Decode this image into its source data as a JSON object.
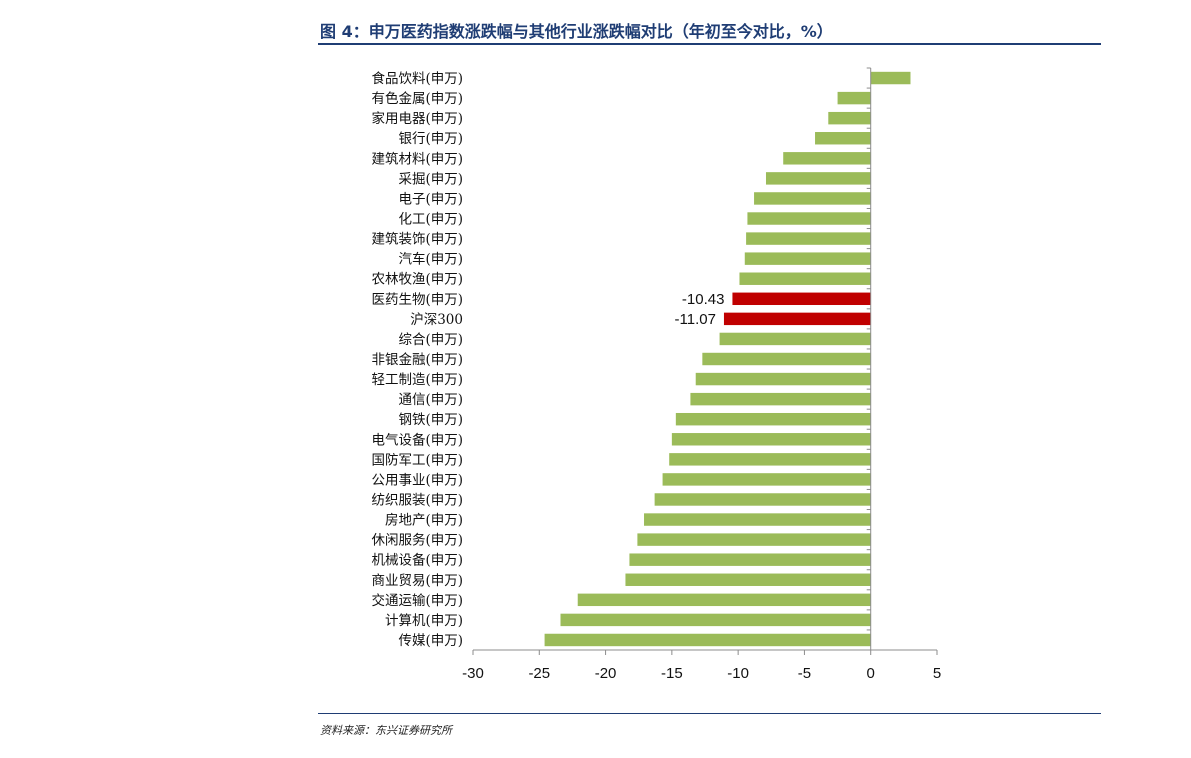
{
  "header": {
    "title": "图 4：申万医药指数涨跌幅与其他行业涨跌幅对比（年初至今对比，%）"
  },
  "footer": {
    "source": "资料来源：东兴证券研究所"
  },
  "colors": {
    "title": "#1f3d74",
    "bar_default": "#9bbb59",
    "bar_highlight": "#c00000",
    "axis": "#8c8c8c"
  },
  "chart_data": {
    "type": "bar",
    "orientation": "horizontal",
    "title": "申万医药指数涨跌幅与其他行业涨跌幅对比（年初至今对比，%）",
    "xlabel": "",
    "ylabel": "",
    "xlim": [
      -30,
      5
    ],
    "xticks": [
      -30,
      -25,
      -20,
      -15,
      -10,
      -5,
      0,
      5
    ],
    "grid": false,
    "categories": [
      "食品饮料(申万)",
      "有色金属(申万)",
      "家用电器(申万)",
      "银行(申万)",
      "建筑材料(申万)",
      "采掘(申万)",
      "电子(申万)",
      "化工(申万)",
      "建筑装饰(申万)",
      "汽车(申万)",
      "农林牧渔(申万)",
      "医药生物(申万)",
      "沪深300",
      "综合(申万)",
      "非银金融(申万)",
      "轻工制造(申万)",
      "通信(申万)",
      "钢铁(申万)",
      "电气设备(申万)",
      "国防军工(申万)",
      "公用事业(申万)",
      "纺织服装(申万)",
      "房地产(申万)",
      "休闲服务(申万)",
      "机械设备(申万)",
      "商业贸易(申万)",
      "交通运输(申万)",
      "计算机(申万)",
      "传媒(申万)"
    ],
    "values": [
      3.0,
      -2.5,
      -3.2,
      -4.2,
      -6.6,
      -7.9,
      -8.8,
      -9.3,
      -9.4,
      -9.5,
      -9.9,
      -10.43,
      -11.07,
      -11.4,
      -12.7,
      -13.2,
      -13.6,
      -14.7,
      -15.0,
      -15.2,
      -15.7,
      -16.3,
      -17.1,
      -17.6,
      -18.2,
      -18.5,
      -22.1,
      -23.4,
      -24.6
    ],
    "highlighted": [
      "医药生物(申万)",
      "沪深300"
    ],
    "data_labels": [
      {
        "category": "医药生物(申万)",
        "text": "-10.43"
      },
      {
        "category": "沪深300",
        "text": "-11.07"
      }
    ]
  }
}
